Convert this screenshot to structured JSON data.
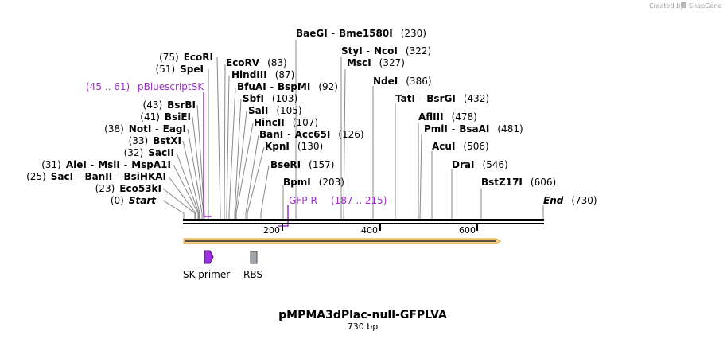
{
  "credit": "Created by",
  "brand": "SnapGene",
  "plasmid_name": "pMPMA3dPlac-null-GFPLVA",
  "plasmid_length": "730 bp",
  "enzymes": [
    {
      "name": "Start",
      "pos": "(0)",
      "italic": true,
      "side": "left"
    },
    {
      "name": "Eco53kI",
      "pos": "(23)",
      "side": "left"
    },
    {
      "name": "SacI - BanII - BsiHKAI",
      "pos": "(25)",
      "side": "left"
    },
    {
      "name": "AleI - MslI - MspA1I",
      "pos": "(31)",
      "side": "left"
    },
    {
      "name": "SacII",
      "pos": "(32)",
      "side": "left"
    },
    {
      "name": "BstXI",
      "pos": "(33)",
      "side": "left"
    },
    {
      "name": "NotI - EagI",
      "pos": "(38)",
      "side": "left"
    },
    {
      "name": "BsiEI",
      "pos": "(41)",
      "side": "left"
    },
    {
      "name": "BsrBI",
      "pos": "(43)",
      "side": "left"
    },
    {
      "name": "SpeI",
      "pos": "(51)",
      "side": "left"
    },
    {
      "name": "EcoRI",
      "pos": "(75)",
      "side": "left"
    },
    {
      "name": "EcoRV",
      "pos": "(83)",
      "side": "right"
    },
    {
      "name": "HindIII",
      "pos": "(87)",
      "side": "right"
    },
    {
      "name": "BfuAI - BspMI",
      "pos": "(92)",
      "side": "right"
    },
    {
      "name": "SbfI",
      "pos": "(103)",
      "side": "right"
    },
    {
      "name": "SalI",
      "pos": "(105)",
      "side": "right"
    },
    {
      "name": "HincII",
      "pos": "(107)",
      "side": "right"
    },
    {
      "name": "BanI - Acc65I",
      "pos": "(126)",
      "side": "right"
    },
    {
      "name": "KpnI",
      "pos": "(130)",
      "side": "right"
    },
    {
      "name": "BseRI",
      "pos": "(157)",
      "side": "right"
    },
    {
      "name": "BpmI",
      "pos": "(203)",
      "side": "right"
    },
    {
      "name": "BaeGI - Bme1580I",
      "pos": "(230)",
      "side": "right"
    },
    {
      "name": "StyI - NcoI",
      "pos": "(322)",
      "side": "right"
    },
    {
      "name": "MscI",
      "pos": "(327)",
      "side": "right"
    },
    {
      "name": "NdeI",
      "pos": "(386)",
      "side": "right"
    },
    {
      "name": "TatI - BsrGI",
      "pos": "(432)",
      "side": "right"
    },
    {
      "name": "AflIII",
      "pos": "(478)",
      "side": "right"
    },
    {
      "name": "PmlI - BsaAI",
      "pos": "(481)",
      "side": "right"
    },
    {
      "name": "AcuI",
      "pos": "(506)",
      "side": "right"
    },
    {
      "name": "DraI",
      "pos": "(546)",
      "side": "right"
    },
    {
      "name": "BstZ17I",
      "pos": "(606)",
      "side": "right"
    },
    {
      "name": "End",
      "pos": "(730)",
      "italic": true,
      "side": "right"
    }
  ],
  "primers": [
    {
      "name": "pBluescriptSK",
      "range": "(45 .. 61)"
    },
    {
      "name": "GFP-R",
      "range": "(187 .. 215)"
    }
  ],
  "ruler_ticks": [
    "200",
    "400",
    "600"
  ],
  "features": [
    {
      "name": "SK primer",
      "color": "#9b30e0"
    },
    {
      "name": "RBS",
      "color": "#a0a4ac"
    }
  ],
  "colors": {
    "primer": "#9b30c8",
    "orf_fill": "#f7d79a",
    "orf_stroke": "#e0a030",
    "backbone": "#000000"
  }
}
